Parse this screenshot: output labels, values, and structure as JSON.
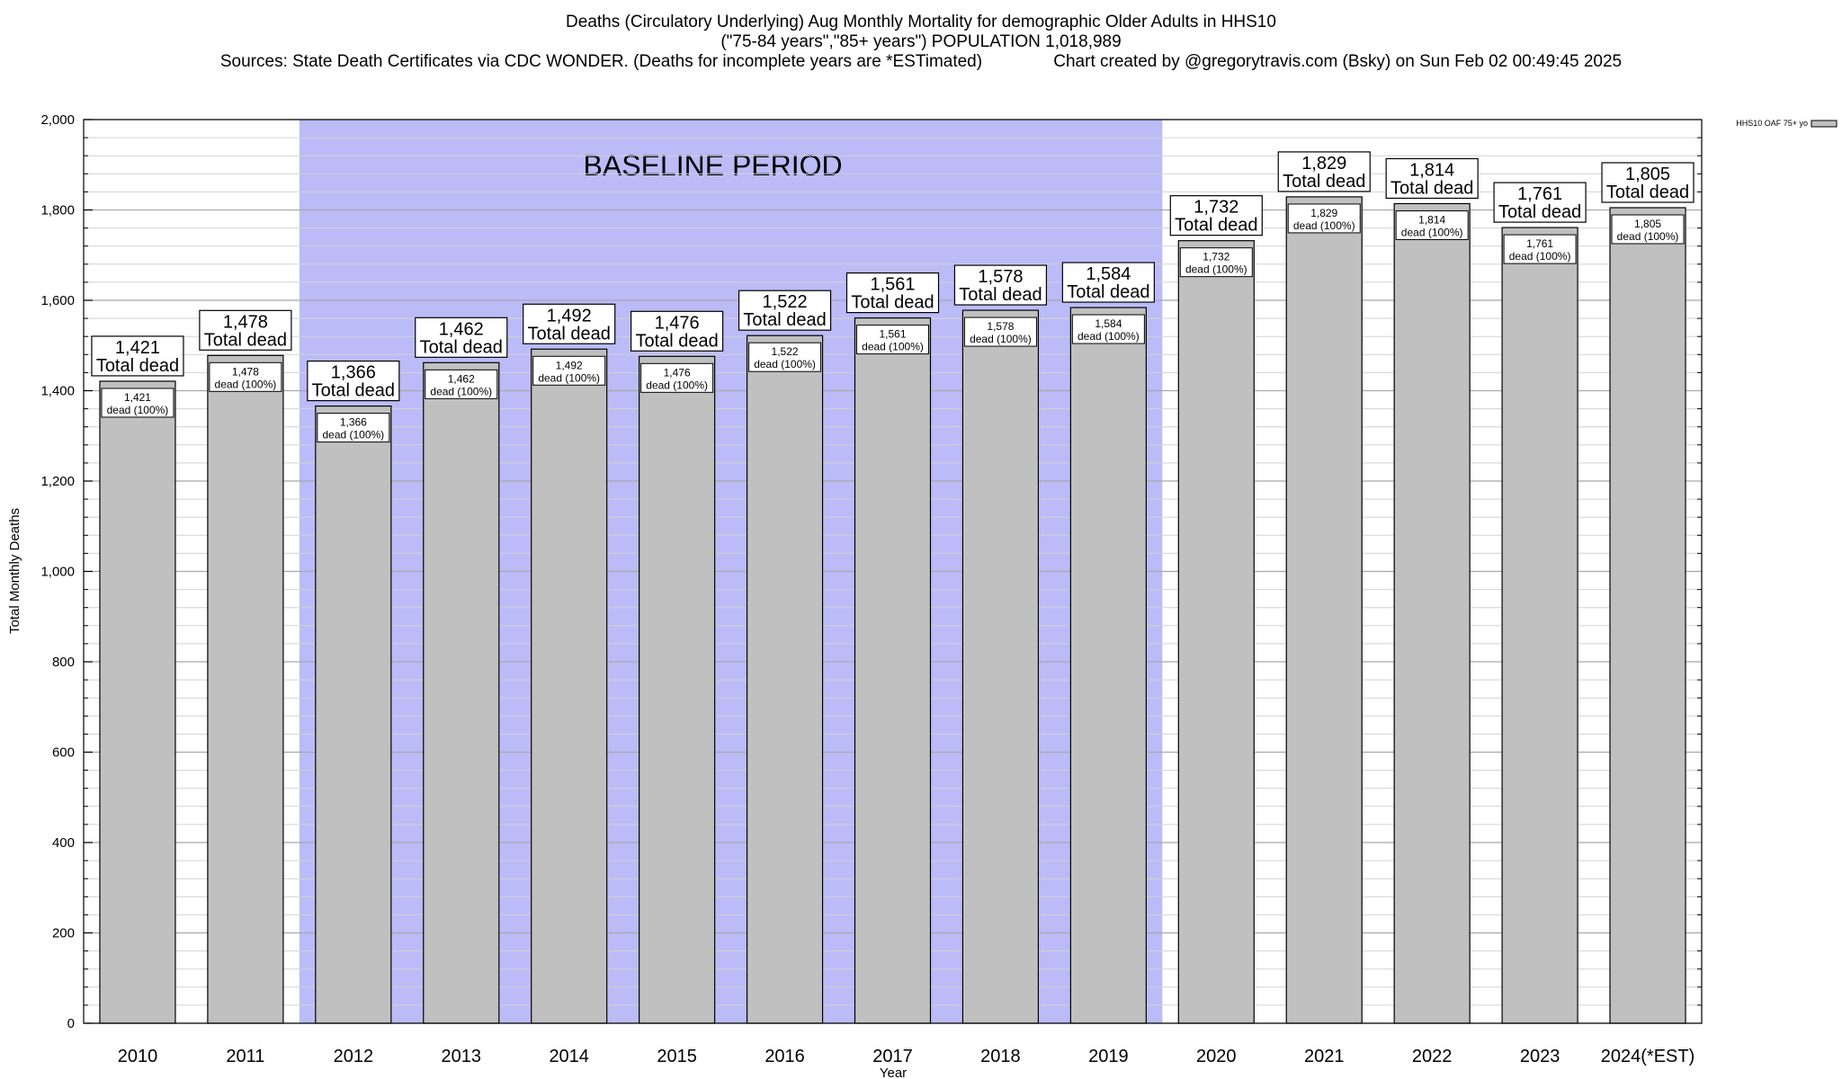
{
  "title": {
    "line1": "Deaths (Circulatory Underlying) Aug Monthly Mortality for demographic Older Adults in HHS10",
    "line2": "(\"75-84 years\",\"85+ years\") POPULATION 1,018,989",
    "line3_left": "Sources: State Death Certificates via CDC WONDER. (Deaths for incomplete years are *ESTimated)",
    "line3_right": "Chart created by @gregorytravis.com (Bsky) on Sun Feb 02 00:49:45 2025"
  },
  "colors": {
    "bar_fill": "#c0c0c0",
    "baseline_fill": "#bbbbf8",
    "grid": "#b4b4b4"
  },
  "chart_data": {
    "type": "bar",
    "categories": [
      "2010",
      "2011",
      "2012",
      "2013",
      "2014",
      "2015",
      "2016",
      "2017",
      "2018",
      "2019",
      "2020",
      "2021",
      "2022",
      "2023",
      "2024(*EST)"
    ],
    "series": [
      {
        "name": "HHS10 OAF 75+ yo",
        "values": [
          1421,
          1478,
          1366,
          1462,
          1492,
          1476,
          1522,
          1561,
          1578,
          1584,
          1732,
          1829,
          1814,
          1761,
          1805
        ]
      }
    ],
    "value_labels": [
      "1,421",
      "1,478",
      "1,366",
      "1,462",
      "1,492",
      "1,476",
      "1,522",
      "1,561",
      "1,578",
      "1,584",
      "1,732",
      "1,829",
      "1,814",
      "1,761",
      "1,805"
    ],
    "total_label": "Total dead",
    "inner_label": "dead (100%)",
    "xlabel": "Year",
    "ylabel": "Total Monthly Deaths",
    "ylim": [
      0,
      2000
    ],
    "yticks": [
      0,
      200,
      400,
      600,
      800,
      1000,
      1200,
      1400,
      1600,
      1800,
      2000
    ],
    "ytick_labels": [
      "0",
      "200",
      "400",
      "600",
      "800",
      "1,000",
      "1,200",
      "1,400",
      "1,600",
      "1,800",
      "2,000"
    ],
    "minor_step": 40,
    "baseline_period": {
      "label": "BASELINE PERIOD",
      "from": "2012",
      "to": "2019"
    },
    "grid": true,
    "legend_position": "top-right"
  }
}
